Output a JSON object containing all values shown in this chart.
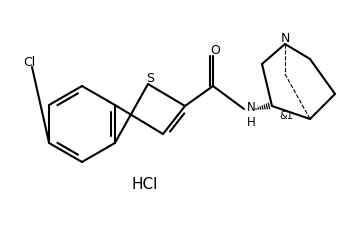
{
  "background": "#ffffff",
  "line_color": "#000000",
  "line_width": 1.5,
  "hcl_text": "HCl",
  "cl_text": "Cl",
  "s_text": "S",
  "o_text": "O",
  "n_text": "N",
  "nh_text": "N\nH",
  "stereo_text": "&1"
}
